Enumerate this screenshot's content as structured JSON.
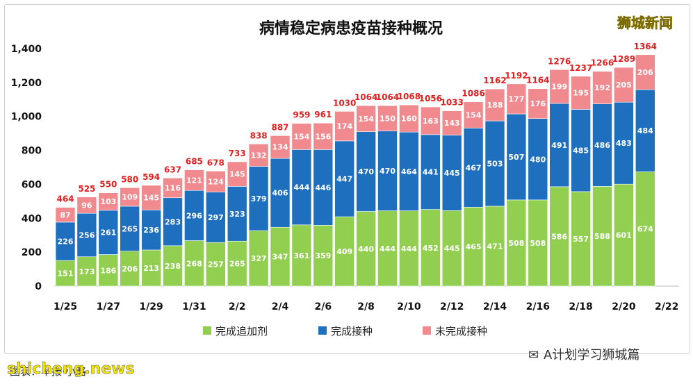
{
  "brand_top": "狮城新闻",
  "watermark_right": "A计划学习狮城篇",
  "watermark_left": "shicheng.news",
  "source_text": "图表：早报·小略",
  "chart_data": {
    "type": "bar",
    "stacked": true,
    "title": "病情稳定病患疫苗接种概况",
    "categories": [
      "1/25",
      "1/26",
      "1/27",
      "1/28",
      "1/29",
      "1/30",
      "1/31",
      "2/1",
      "2/2",
      "2/3",
      "2/4",
      "2/5",
      "2/6",
      "2/7",
      "2/8",
      "2/9",
      "2/10",
      "2/11",
      "2/12",
      "2/13",
      "2/14",
      "2/15",
      "2/16",
      "2/17",
      "2/18",
      "2/19",
      "2/20",
      "2/21"
    ],
    "x_tick_labels": [
      "1/25",
      "1/27",
      "1/29",
      "1/31",
      "2/2",
      "2/4",
      "2/6",
      "2/8",
      "2/10",
      "2/12",
      "2/14",
      "2/16",
      "2/18",
      "2/20",
      "2/22"
    ],
    "ylim": [
      0,
      1400
    ],
    "yticks": [
      "0",
      "200",
      "400",
      "600",
      "800",
      "1,000",
      "1,200",
      "1,400"
    ],
    "grid": false,
    "legend_position": "bottom",
    "series": [
      {
        "name": "完成追加剂",
        "color": "#92cf50",
        "values": [
          151,
          173,
          186,
          206,
          213,
          238,
          268,
          257,
          265,
          327,
          347,
          361,
          359,
          409,
          440,
          444,
          444,
          452,
          445,
          465,
          471,
          508,
          508,
          586,
          557,
          588,
          601,
          674
        ]
      },
      {
        "name": "完成接种",
        "color": "#1f6fbf",
        "values": [
          226,
          256,
          261,
          265,
          236,
          283,
          296,
          297,
          323,
          379,
          406,
          444,
          446,
          447,
          470,
          470,
          464,
          441,
          445,
          467,
          503,
          507,
          480,
          491,
          485,
          486,
          483,
          484
        ]
      },
      {
        "name": "未完成接种",
        "color": "#f08a8f",
        "values": [
          87,
          96,
          103,
          109,
          145,
          116,
          121,
          124,
          145,
          132,
          134,
          154,
          156,
          174,
          154,
          150,
          160,
          163,
          143,
          154,
          188,
          177,
          176,
          199,
          195,
          192,
          205,
          206
        ]
      }
    ],
    "totals": [
      464,
      525,
      550,
      580,
      594,
      637,
      685,
      678,
      733,
      838,
      887,
      959,
      961,
      1030,
      1064,
      1064,
      1068,
      1056,
      1033,
      1086,
      1162,
      1192,
      1164,
      1276,
      1237,
      1266,
      1289,
      1364
    ]
  }
}
